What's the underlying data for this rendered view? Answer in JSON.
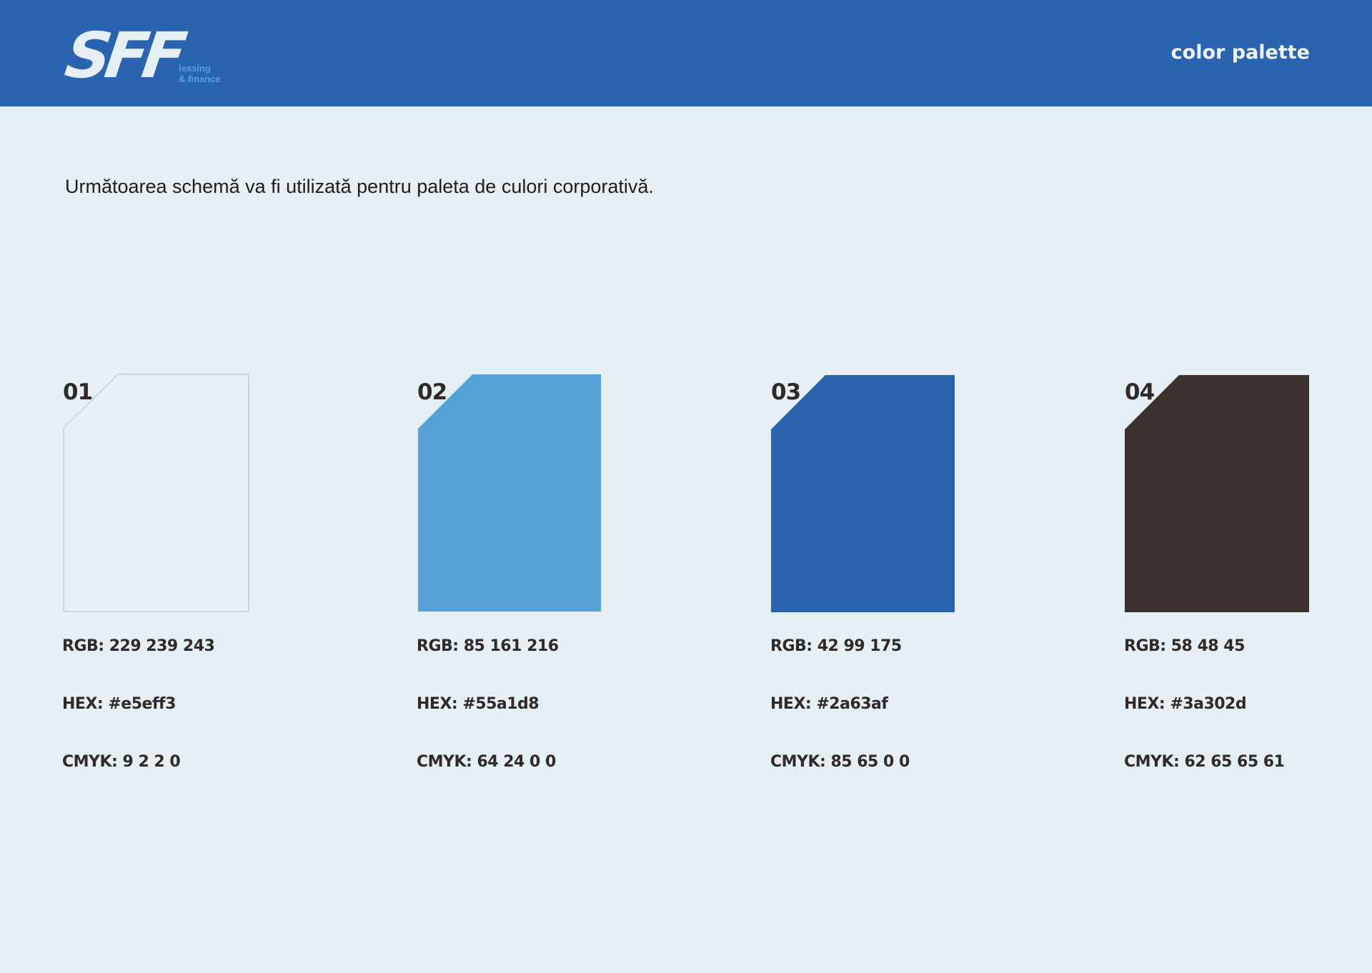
{
  "header": {
    "logo_text": "SFF",
    "logo_tagline": [
      "leasing",
      "& finance"
    ],
    "title": "color palette"
  },
  "intro": "Următoarea schemă va fi utilizată pentru paleta de culori corporativă.",
  "palette": [
    {
      "number": "01",
      "color": "#e5eff3",
      "rgb": "RGB: 229 239 243",
      "hex": "HEX: #e5eff3",
      "cmyk": "CMYK: 9 2 2 0"
    },
    {
      "number": "02",
      "color": "#55a1d8",
      "rgb": "RGB: 85 161 216",
      "hex": "HEX: #55a1d8",
      "cmyk": "CMYK: 64 24 0 0"
    },
    {
      "number": "03",
      "color": "#2a63af",
      "rgb": "RGB: 42 99 175",
      "hex": "HEX: #2a63af",
      "cmyk": "CMYK: 85 65 0 0"
    },
    {
      "number": "04",
      "color": "#3a302d",
      "rgb": "RGB: 58 48 45",
      "hex": "HEX: #3a302d",
      "cmyk": "CMYK: 62 65 65 61"
    }
  ],
  "colors": {
    "background": "#e7eff6",
    "header": "#2a63af",
    "accent": "#55a1d8",
    "text": "#2f2a28"
  }
}
